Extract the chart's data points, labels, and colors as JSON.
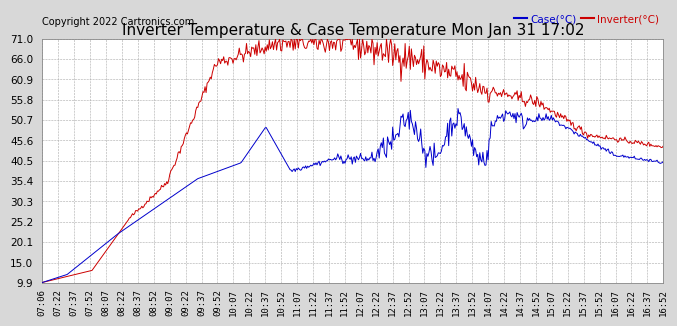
{
  "title": "Inverter Temperature & Case Temperature Mon Jan 31 17:02",
  "copyright": "Copyright 2022 Cartronics.com",
  "legend_case": "Case(°C)",
  "legend_inverter": "Inverter(°C)",
  "yticks": [
    9.9,
    15.0,
    20.1,
    25.2,
    30.3,
    35.4,
    40.5,
    45.6,
    50.7,
    55.8,
    60.9,
    66.0,
    71.0
  ],
  "ymin": 9.9,
  "ymax": 71.0,
  "xtick_labels": [
    "07:06",
    "07:22",
    "07:37",
    "07:52",
    "08:07",
    "08:22",
    "08:37",
    "08:52",
    "09:07",
    "09:22",
    "09:37",
    "09:52",
    "10:07",
    "10:22",
    "10:37",
    "10:52",
    "11:07",
    "11:22",
    "11:37",
    "11:52",
    "12:07",
    "12:22",
    "12:37",
    "12:52",
    "13:07",
    "13:22",
    "13:37",
    "13:52",
    "14:07",
    "14:22",
    "14:37",
    "14:52",
    "15:07",
    "15:22",
    "15:37",
    "15:52",
    "16:07",
    "16:22",
    "16:37",
    "16:52"
  ],
  "bg_color": "#d8d8d8",
  "plot_bg_color": "#ffffff",
  "grid_color": "#aaaaaa",
  "case_color": "#0000cc",
  "inverter_color": "#cc0000",
  "title_fontsize": 11,
  "copyright_fontsize": 7,
  "tick_fontsize": 6.5
}
